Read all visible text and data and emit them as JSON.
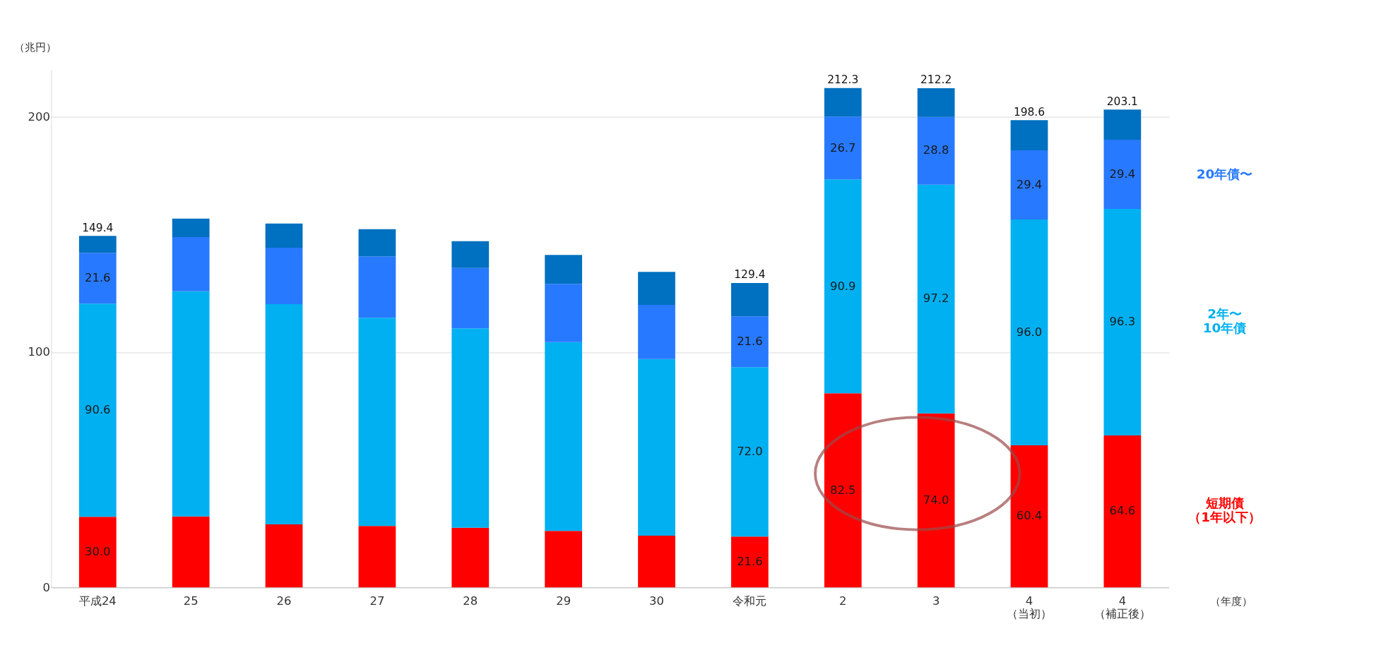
{
  "chart_data": {
    "type": "bar",
    "stacked": true,
    "categories": [
      "平成24",
      "25",
      "26",
      "27",
      "28",
      "29",
      "30",
      "令和元",
      "2",
      "3",
      "4\n（当初）",
      "4\n（補正後）"
    ],
    "ylabel": "（兆円）",
    "xlabel": "（年度）",
    "ylim": [
      0,
      220
    ],
    "yticks": [
      0,
      100,
      200
    ],
    "grid": "y",
    "legend": "right",
    "series": [
      {
        "name": "短期債（1年以下）",
        "color": "#ff0000",
        "values": [
          30.0,
          30.2,
          26.8,
          26.1,
          25.4,
          24.0,
          22.0,
          21.6,
          82.5,
          74.0,
          60.4,
          64.6
        ],
        "value_labels": [
          "30.0",
          null,
          null,
          null,
          null,
          null,
          null,
          "21.6",
          "82.5",
          "74.0",
          "60.4",
          "64.6"
        ]
      },
      {
        "name": "2年〜10年債",
        "color": "#00b0f0",
        "values": [
          90.6,
          95.7,
          93.6,
          88.5,
          84.7,
          80.3,
          75.1,
          72.0,
          90.9,
          97.2,
          96.0,
          96.3
        ],
        "value_labels": [
          "90.6",
          null,
          null,
          null,
          null,
          null,
          null,
          "72.0",
          "90.9",
          "97.2",
          "96.0",
          "96.3"
        ]
      },
      {
        "name": "20年債〜",
        "color": "#2779ff",
        "values": [
          21.6,
          23.0,
          24.0,
          26.1,
          25.7,
          24.7,
          23.0,
          21.6,
          26.7,
          28.8,
          29.4,
          29.4
        ],
        "value_labels": [
          "21.6",
          null,
          null,
          null,
          null,
          null,
          null,
          "21.6",
          "26.7",
          "28.8",
          "29.4",
          "29.4"
        ]
      },
      {
        "color": "#0070c0",
        "values": [
          7.2,
          7.9,
          10.3,
          11.6,
          11.4,
          12.3,
          14.0,
          14.2,
          12.2,
          12.2,
          12.8,
          12.8
        ]
      }
    ],
    "totals": [
      "149.4",
      null,
      null,
      null,
      null,
      null,
      null,
      "129.4",
      "212.3",
      "212.2",
      "198.6",
      "203.1"
    ]
  }
}
